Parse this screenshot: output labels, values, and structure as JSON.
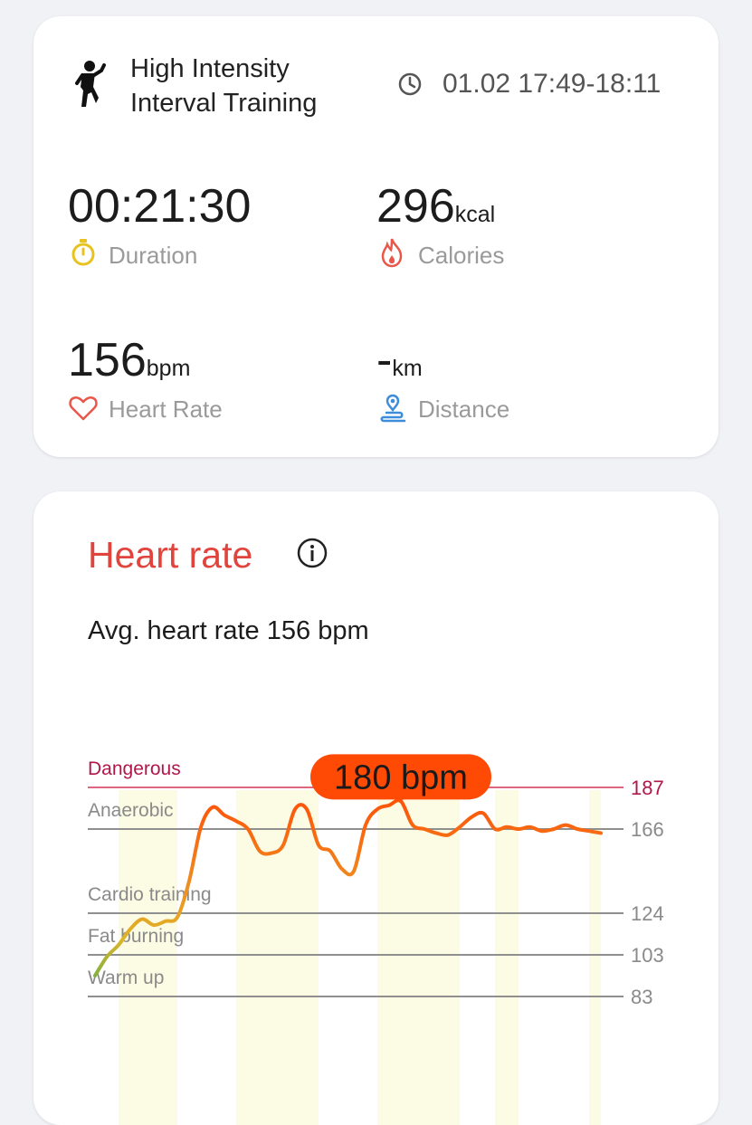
{
  "workout": {
    "title_line1": "High Intensity",
    "title_line2": "Interval Training",
    "time_range": "01.02 17:49-18:11"
  },
  "stats": {
    "duration": {
      "value": "00:21:30",
      "label": "Duration"
    },
    "calories": {
      "value": "296",
      "unit": "kcal",
      "label": "Calories"
    },
    "heart_rate": {
      "value": "156",
      "unit": "bpm",
      "label": "Heart Rate"
    },
    "distance": {
      "value": "-",
      "unit": "km",
      "label": "Distance"
    }
  },
  "heart_rate_section": {
    "title": "Heart rate",
    "avg_text": "Avg. heart rate 156 bpm",
    "max_badge": "180 bpm"
  },
  "chart_data": {
    "type": "line",
    "ylim": [
      83,
      187
    ],
    "zones": [
      {
        "name": "Dangerous",
        "threshold": 187
      },
      {
        "name": "Anaerobic",
        "threshold": 166
      },
      {
        "name": "Cardio training",
        "threshold": 124
      },
      {
        "name": "Fat burning",
        "threshold": 103
      },
      {
        "name": "Warm up",
        "threshold": 83
      }
    ],
    "y_ticks": [
      187,
      166,
      124,
      103,
      83
    ],
    "max_value": 180,
    "x": [
      0,
      0.5,
      1,
      1.5,
      2,
      2.5,
      3,
      3.5,
      4,
      4.5,
      5,
      5.5,
      6,
      6.5,
      7,
      7.5,
      8,
      8.5,
      9,
      9.5,
      10,
      10.5,
      11,
      11.5,
      12,
      12.5,
      13,
      13.5,
      14,
      14.5,
      15,
      15.5,
      16,
      16.5,
      17,
      17.5,
      18,
      18.5,
      19,
      19.5,
      20,
      20.5,
      21,
      21.5
    ],
    "values": [
      93,
      102,
      108,
      116,
      121,
      118,
      120,
      122,
      140,
      167,
      177,
      173,
      170,
      166,
      155,
      154,
      158,
      176,
      176,
      158,
      155,
      146,
      145,
      168,
      176,
      178,
      180,
      168,
      166,
      164,
      163,
      167,
      172,
      174,
      166,
      167,
      166,
      167,
      165,
      166,
      168,
      166,
      165,
      164
    ]
  },
  "colors": {
    "accent_red": "#e0443c",
    "danger_line": "#e0667f",
    "badge": "#ff4a05",
    "background": "#f1f2f6"
  },
  "icons": [
    "runner-icon",
    "clock-icon",
    "stopwatch-icon",
    "flame-icon",
    "heart-icon",
    "location-icon",
    "info-icon"
  ]
}
